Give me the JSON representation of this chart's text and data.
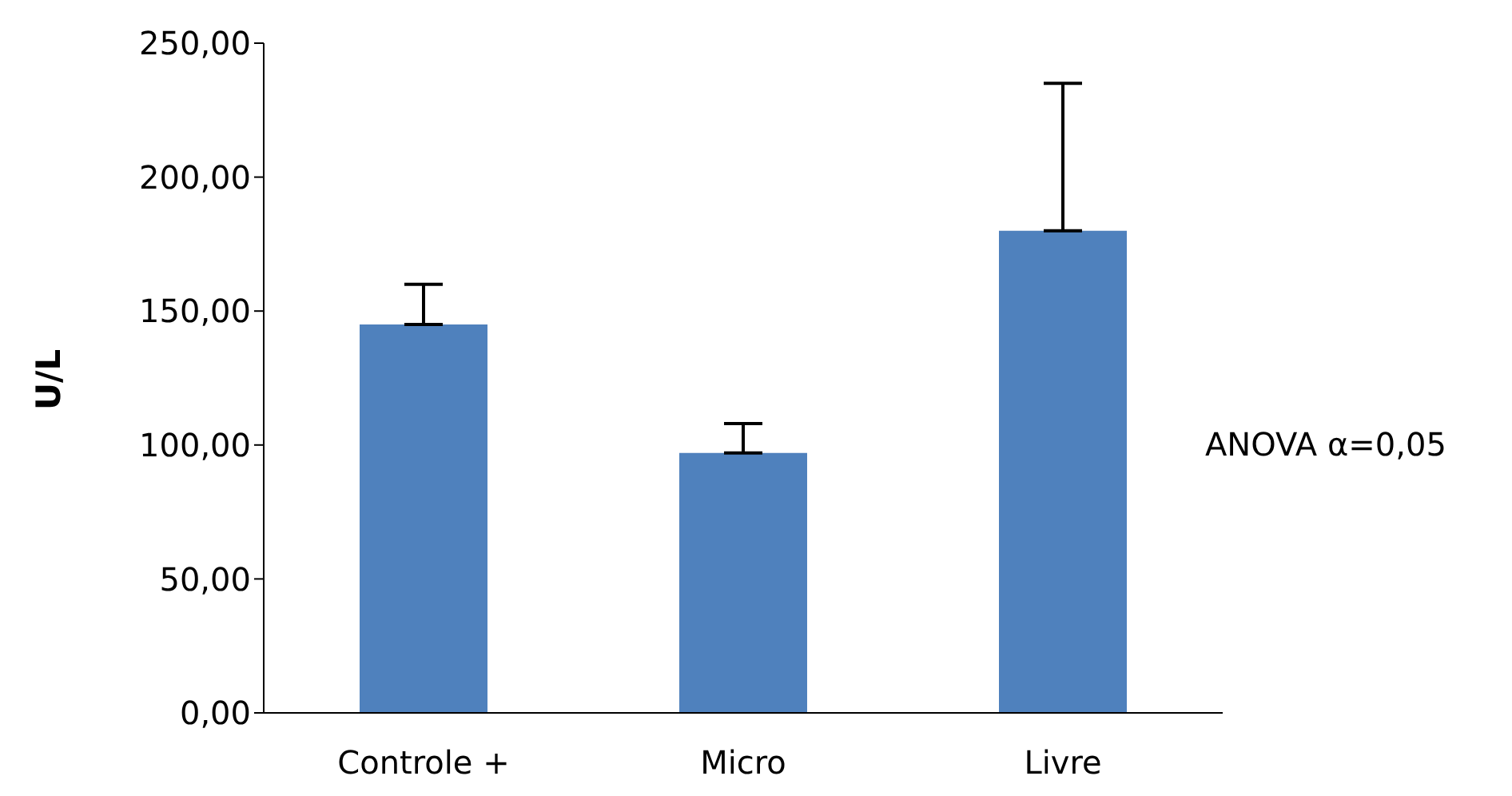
{
  "chart_data": {
    "type": "bar",
    "ylabel": "U/L",
    "categories": [
      "Controle +",
      "Micro",
      "Livre"
    ],
    "values": [
      145,
      97,
      180
    ],
    "errors": [
      [
        145,
        160
      ],
      [
        97,
        108
      ],
      [
        180,
        235
      ]
    ],
    "color": "#4f81bd",
    "ylim": [
      0,
      250
    ],
    "yticks": [
      {
        "value": 0,
        "label": "0,00"
      },
      {
        "value": 50,
        "label": "50,00"
      },
      {
        "value": 100,
        "label": "100,00"
      },
      {
        "value": 150,
        "label": "150,00"
      },
      {
        "value": 200,
        "label": "200,00"
      },
      {
        "value": 250,
        "label": "250,00"
      }
    ],
    "grid": false,
    "legend": false,
    "annotations": [
      "ANOVA α=0,05"
    ]
  }
}
